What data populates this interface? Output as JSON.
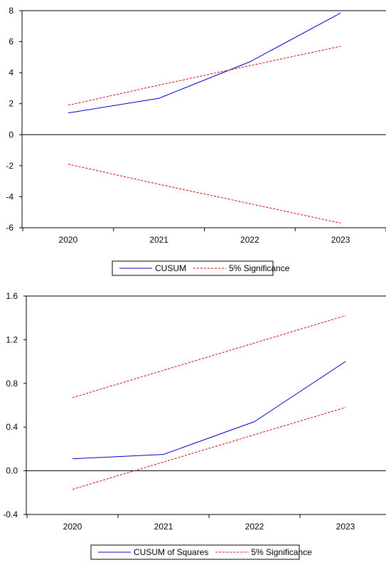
{
  "chart_data": [
    {
      "type": "line",
      "title": "",
      "xlabel": "",
      "ylabel": "",
      "x": [
        "2020",
        "2021",
        "2022",
        "2023"
      ],
      "ylim": [
        -6,
        8
      ],
      "yticks": [
        "8",
        "6",
        "4",
        "2",
        "0",
        "-2",
        "-4",
        "-6"
      ],
      "grid": false,
      "zero_line": true,
      "legend_position": "bottom-center",
      "series": [
        {
          "name": "CUSUM",
          "values": [
            1.4,
            2.35,
            4.7,
            7.85
          ],
          "color": "#0000cc",
          "style": "solid"
        },
        {
          "name": "5% Significance",
          "values": [
            1.9,
            3.2,
            4.45,
            5.7
          ],
          "color": "#dd0000",
          "style": "dashed"
        },
        {
          "name": "5% Significance",
          "values": [
            -1.9,
            -3.2,
            -4.45,
            -5.7
          ],
          "color": "#dd0000",
          "style": "dashed",
          "legend": false
        }
      ]
    },
    {
      "type": "line",
      "title": "",
      "xlabel": "",
      "ylabel": "",
      "x": [
        "2020",
        "2021",
        "2022",
        "2023"
      ],
      "ylim": [
        -0.4,
        1.6
      ],
      "yticks": [
        "1.6",
        "1.2",
        "0.8",
        "0.4",
        "0.0",
        "-0.4"
      ],
      "grid": false,
      "zero_line": true,
      "legend_position": "bottom-center",
      "series": [
        {
          "name": "CUSUM of Squares",
          "values": [
            0.11,
            0.15,
            0.45,
            1.0
          ],
          "color": "#0000cc",
          "style": "solid"
        },
        {
          "name": "5% Significance",
          "values": [
            0.67,
            0.92,
            1.17,
            1.42
          ],
          "color": "#dd0000",
          "style": "dashed"
        },
        {
          "name": "5% Significance",
          "values": [
            -0.17,
            0.08,
            0.33,
            0.58
          ],
          "color": "#dd0000",
          "style": "dashed",
          "legend": false
        }
      ]
    }
  ]
}
